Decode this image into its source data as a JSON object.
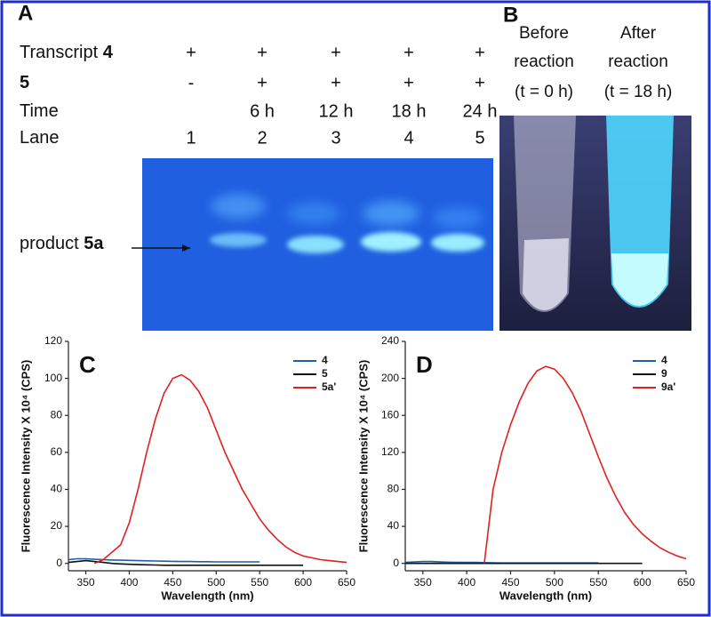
{
  "panel_a": {
    "letter": "A",
    "rows": [
      {
        "label": "Transcript ",
        "label_bold": "4",
        "cells": [
          "+",
          "+",
          "+",
          "+",
          "+"
        ]
      },
      {
        "label_bold": "5",
        "cells": [
          "-",
          "+",
          "+",
          "+",
          "+"
        ]
      },
      {
        "label": "Time",
        "cells": [
          null,
          "6 h",
          "12 h",
          "18 h",
          "24 h"
        ]
      },
      {
        "label": "Lane",
        "cells": [
          "1",
          "2",
          "3",
          "4",
          "5"
        ]
      }
    ],
    "product_label": "product ",
    "product_bold": "5a"
  },
  "panel_b": {
    "letter": "B",
    "tubes": [
      {
        "lines": [
          "Before",
          "reaction",
          "(t = 0 h)"
        ]
      },
      {
        "lines": [
          "After",
          "reaction",
          "(t = 18 h)"
        ]
      }
    ]
  },
  "chart_data": [
    {
      "type": "line",
      "panel_label": "C",
      "xlabel": "Wavelength (nm)",
      "ylabel": "Fluorescence Intensity X 10⁴ (CPS)",
      "x": [
        330,
        340,
        350,
        360,
        370,
        380,
        390,
        400,
        410,
        420,
        430,
        440,
        450,
        460,
        470,
        480,
        490,
        500,
        510,
        520,
        530,
        540,
        550,
        560,
        570,
        580,
        590,
        600,
        610,
        620,
        630,
        640,
        650
      ],
      "xlim": [
        330,
        650
      ],
      "xticks": [
        350,
        400,
        450,
        500,
        550,
        600,
        650
      ],
      "ylim": [
        -4,
        120
      ],
      "yticks": [
        0,
        20,
        40,
        60,
        80,
        100,
        120
      ],
      "series": [
        {
          "name": "4",
          "color": "#1f5fa8",
          "values": [
            2,
            2.5,
            2.5,
            2.2,
            2,
            1.8,
            1.7,
            1.6,
            1.5,
            1.4,
            1.3,
            1.2,
            1.1,
            1,
            1,
            0.9,
            0.9,
            0.8,
            0.8,
            0.8,
            0.8,
            0.8,
            0.8,
            null,
            null,
            null,
            null,
            null,
            null,
            null,
            null,
            null,
            null
          ]
        },
        {
          "name": "5",
          "color": "#111111",
          "values": [
            0.5,
            1,
            1.5,
            1,
            0.5,
            0,
            -0.3,
            -0.5,
            -0.7,
            -0.8,
            -0.9,
            -1,
            -1,
            -1,
            -1,
            -1,
            -1,
            -1,
            -1,
            -1,
            -1,
            -1,
            -1,
            -1,
            -1,
            -1,
            -1,
            -1,
            null,
            null,
            null,
            null,
            null
          ]
        },
        {
          "name": "5a'",
          "color": "#e02020",
          "values": [
            null,
            null,
            null,
            0,
            2,
            6,
            10,
            22,
            40,
            60,
            78,
            92,
            100,
            102,
            99,
            93,
            84,
            72,
            60,
            50,
            40,
            32,
            24,
            18,
            13,
            9,
            6,
            4,
            3,
            2,
            1.5,
            1,
            0.5
          ]
        }
      ]
    },
    {
      "type": "line",
      "panel_label": "D",
      "xlabel": "Wavelength (nm)",
      "ylabel": "Fluorescence Intensity X 10⁴ (CPS)",
      "x": [
        330,
        340,
        350,
        360,
        370,
        380,
        390,
        400,
        410,
        420,
        430,
        440,
        450,
        460,
        470,
        480,
        490,
        500,
        510,
        520,
        530,
        540,
        550,
        560,
        570,
        580,
        590,
        600,
        610,
        620,
        630,
        640,
        650
      ],
      "xlim": [
        330,
        650
      ],
      "xticks": [
        350,
        400,
        450,
        500,
        550,
        600,
        650
      ],
      "ylim": [
        -8,
        240
      ],
      "yticks": [
        0,
        40,
        80,
        120,
        160,
        200,
        240
      ],
      "series": [
        {
          "name": "4",
          "color": "#1f5fa8",
          "values": [
            1,
            1.5,
            2,
            2,
            1.5,
            1.2,
            1,
            1,
            1,
            0.8,
            0.6,
            0.5,
            0.5,
            0.5,
            0.5,
            0.5,
            0.5,
            0.5,
            0.5,
            0.5,
            0.5,
            0.5,
            0.5,
            null,
            null,
            null,
            null,
            null,
            null,
            null,
            null,
            null,
            null
          ]
        },
        {
          "name": "9",
          "color": "#111111",
          "values": [
            0,
            0,
            0,
            0,
            0,
            0,
            0,
            0,
            0,
            0,
            0,
            0,
            0,
            0,
            0,
            0,
            0,
            0,
            0,
            0,
            0,
            0,
            0,
            0,
            0,
            0,
            0,
            0,
            null,
            null,
            null,
            null,
            null
          ]
        },
        {
          "name": "9a'",
          "color": "#e02020",
          "values": [
            null,
            null,
            null,
            null,
            null,
            null,
            null,
            null,
            null,
            0,
            80,
            120,
            150,
            175,
            195,
            208,
            213,
            210,
            200,
            185,
            165,
            140,
            115,
            92,
            72,
            55,
            42,
            32,
            24,
            17,
            12,
            8,
            5
          ]
        }
      ]
    }
  ]
}
